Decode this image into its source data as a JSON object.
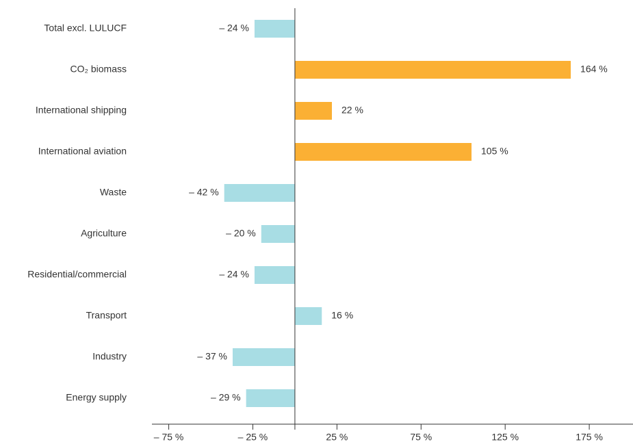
{
  "chart_data": {
    "type": "barh",
    "categories": [
      "Total excl. LULUCF",
      "CO₂ biomass",
      "International shipping",
      "International aviation",
      "Waste",
      "Agriculture",
      "Residential/commercial",
      "Transport",
      "Industry",
      "Energy supply"
    ],
    "values": [
      -24,
      164,
      22,
      105,
      -42,
      -20,
      -24,
      16,
      -37,
      -29
    ],
    "value_labels": [
      "– 24 %",
      "164 %",
      "22 %",
      "105 %",
      "– 42 %",
      "– 20 %",
      "– 24 %",
      "16 %",
      "– 37 %",
      "– 29 %"
    ],
    "colors": [
      "#a8dde4",
      "#fbb034",
      "#fbb034",
      "#fbb034",
      "#a8dde4",
      "#a8dde4",
      "#a8dde4",
      "#a8dde4",
      "#a8dde4",
      "#a8dde4"
    ],
    "xlim": [
      -85,
      201
    ],
    "xticks": [
      {
        "value": -75,
        "label": "– 75 %"
      },
      {
        "value": -25,
        "label": "– 25 %"
      },
      {
        "value": 25,
        "label": "25 %"
      },
      {
        "value": 75,
        "label": "75 %"
      },
      {
        "value": 125,
        "label": "125 %"
      },
      {
        "value": 175,
        "label": "175 %"
      }
    ]
  }
}
